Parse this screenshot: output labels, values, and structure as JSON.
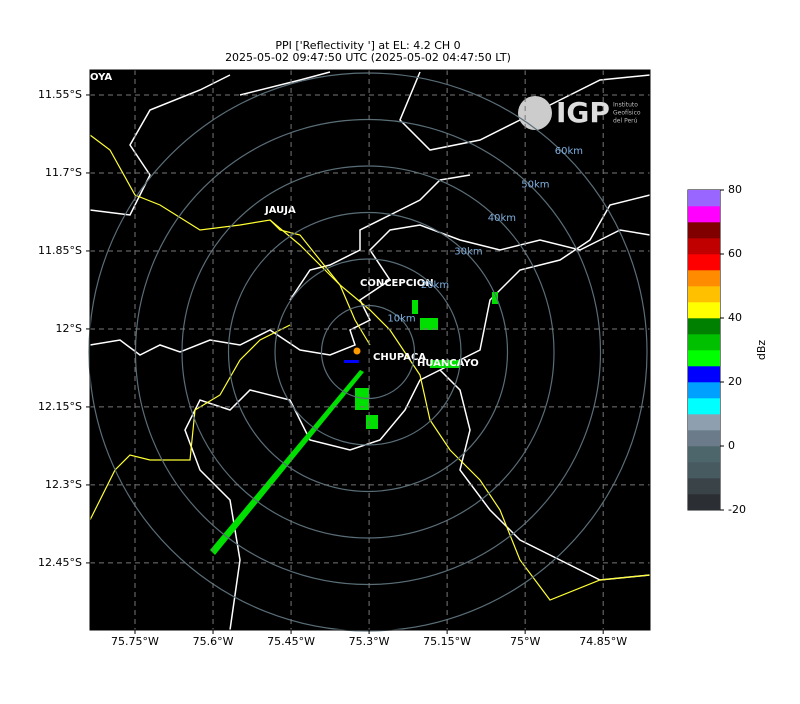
{
  "title": [
    "PPI ['Reflectivity '] at EL: 4.2 CH 0",
    "2025-05-02 09:47:50 UTC (2025-05-02 04:47:50 LT)"
  ],
  "map": {
    "xlim": [
      -75.8365,
      -74.76
    ],
    "ylim": [
      -12.579,
      -11.502
    ],
    "xticks": [
      {
        "value": -75.75,
        "label": "75.75°W"
      },
      {
        "value": -75.6,
        "label": "75.6°W"
      },
      {
        "value": -75.45,
        "label": "75.45°W"
      },
      {
        "value": -75.3,
        "label": "75.3°W"
      },
      {
        "value": -75.15,
        "label": "75.15°W"
      },
      {
        "value": -75,
        "label": "75°W"
      },
      {
        "value": -74.85,
        "label": "74.85°W"
      }
    ],
    "yticks": [
      {
        "value": -11.55,
        "label": "11.55°S"
      },
      {
        "value": -11.7,
        "label": "11.7°S"
      },
      {
        "value": -11.85,
        "label": "11.85°S"
      },
      {
        "value": -12,
        "label": "12°S"
      },
      {
        "value": -12.15,
        "label": "12.15°S"
      },
      {
        "value": -12.3,
        "label": "12.3°S"
      },
      {
        "value": -12.45,
        "label": "12.45°S"
      }
    ],
    "grid": true,
    "range_labels": [
      "10km",
      "20km",
      "30km",
      "40km",
      "50km",
      "60km"
    ],
    "cities": [
      "OYA",
      "JAUJA",
      "CONCEPCION",
      "CHUPACA",
      "HUANCAYO"
    ],
    "logo": {
      "mark": "IGP",
      "text": [
        "Instituto",
        "Geofísico",
        "del Perú"
      ]
    }
  },
  "colorbar": {
    "label": "dBz",
    "lim": [
      -20,
      80
    ],
    "ticks": [
      -20,
      0,
      20,
      40,
      60,
      80
    ],
    "colors": [
      "#2b2f33",
      "#3a4348",
      "#465a60",
      "#4c666c",
      "#6b7b8a",
      "#8ea0b0",
      "#00ffff",
      "#00a0ff",
      "#0000ff",
      "#00ff00",
      "#00c000",
      "#008000",
      "#ffff00",
      "#ffc000",
      "#ff8c00",
      "#ff0000",
      "#c00000",
      "#800000",
      "#ff00ff",
      "#9966ff"
    ]
  }
}
